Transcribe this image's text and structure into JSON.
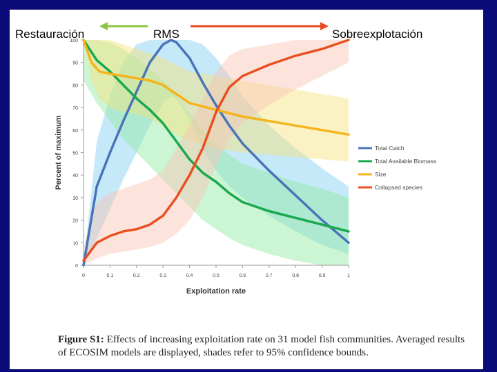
{
  "header": {
    "left_label": "Restauración",
    "center_label": "RMS",
    "right_label": "Sobreexplotación",
    "left_arrow_color": "#8cc63f",
    "right_arrow_color": "#e84a1c"
  },
  "chart_data": {
    "type": "line",
    "title": "",
    "xlabel": "Exploitation rate",
    "ylabel": "Percent of maximum",
    "xlim": [
      0,
      1
    ],
    "ylim": [
      0,
      100
    ],
    "x_ticks": [
      "0",
      "0.1",
      "0.2",
      "0.3",
      "0.4",
      "0.5",
      "0.6",
      "0.7",
      "0.8",
      "0.9",
      "1"
    ],
    "y_ticks": [
      "0",
      "10",
      "20",
      "30",
      "40",
      "50",
      "60",
      "70",
      "80",
      "90",
      "100"
    ],
    "legend_position": "right",
    "series": [
      {
        "name": "Total Catch",
        "color": "#4a73b8",
        "band_color": "#7ecff0",
        "x": [
          0,
          0.05,
          0.1,
          0.15,
          0.2,
          0.25,
          0.3,
          0.33,
          0.35,
          0.4,
          0.45,
          0.5,
          0.55,
          0.6,
          0.7,
          0.8,
          0.9,
          1.0
        ],
        "values": [
          0,
          35,
          50,
          64,
          77,
          90,
          98,
          100,
          99,
          92,
          81,
          71,
          62,
          54,
          42,
          31,
          20,
          10
        ],
        "lower": [
          0,
          12,
          25,
          38,
          50,
          62,
          72,
          75,
          74,
          65,
          52,
          42,
          35,
          30,
          22,
          15,
          9,
          5
        ],
        "upper": [
          0,
          55,
          75,
          90,
          98,
          100,
          100,
          100,
          100,
          100,
          98,
          92,
          84,
          75,
          62,
          52,
          43,
          35
        ]
      },
      {
        "name": "Total Available Biomass",
        "color": "#1aa84f",
        "band_color": "#8ee8a0",
        "x": [
          0,
          0.05,
          0.1,
          0.15,
          0.2,
          0.25,
          0.3,
          0.35,
          0.4,
          0.45,
          0.5,
          0.55,
          0.6,
          0.7,
          0.8,
          0.9,
          1.0
        ],
        "values": [
          100,
          91,
          86,
          80,
          74,
          69,
          63,
          55,
          47,
          41,
          37,
          32,
          28,
          24,
          21,
          18,
          15
        ],
        "lower": [
          82,
          72,
          64,
          56,
          50,
          44,
          38,
          32,
          26,
          20,
          16,
          12,
          9,
          5,
          2,
          0,
          0
        ],
        "upper": [
          100,
          100,
          99,
          96,
          92,
          87,
          82,
          75,
          67,
          60,
          54,
          49,
          45,
          41,
          37,
          34,
          30
        ]
      },
      {
        "name": "Size",
        "color": "#f5b41a",
        "band_color": "#f7e27a",
        "x": [
          0,
          0.03,
          0.06,
          0.1,
          0.15,
          0.2,
          0.25,
          0.3,
          0.35,
          0.4,
          0.5,
          0.6,
          0.7,
          0.8,
          0.9,
          1.0
        ],
        "values": [
          100,
          90,
          86,
          85,
          84,
          83,
          82,
          80,
          76,
          72,
          69,
          66,
          64,
          62,
          60,
          58
        ],
        "lower": [
          100,
          82,
          74,
          70,
          68,
          67,
          65,
          62,
          58,
          55,
          52,
          50,
          49,
          48,
          47,
          46
        ],
        "upper": [
          100,
          100,
          100,
          100,
          98,
          96,
          94,
          92,
          89,
          86,
          84,
          82,
          80,
          78,
          76,
          74
        ]
      },
      {
        "name": "Collapsed species",
        "color": "#e85020",
        "band_color": "#f8c4b4",
        "x": [
          0,
          0.05,
          0.1,
          0.15,
          0.2,
          0.25,
          0.3,
          0.35,
          0.4,
          0.45,
          0.5,
          0.55,
          0.6,
          0.7,
          0.8,
          0.9,
          1.0
        ],
        "values": [
          2,
          10,
          13,
          15,
          16,
          18,
          22,
          30,
          40,
          52,
          68,
          79,
          84,
          89,
          93,
          96,
          100
        ],
        "lower": [
          0,
          3,
          5,
          6,
          7,
          8,
          10,
          14,
          20,
          30,
          44,
          56,
          63,
          71,
          78,
          84,
          90
        ],
        "upper": [
          8,
          28,
          32,
          34,
          36,
          38,
          42,
          52,
          62,
          74,
          86,
          93,
          96,
          98,
          100,
          100,
          100
        ]
      }
    ]
  },
  "caption": {
    "label": "Figure S1:",
    "text": " Effects of increasing exploitation rate on 31 model fish communities. Averaged results of ECOSIM models are displayed, shades refer to 95% confidence bounds."
  }
}
